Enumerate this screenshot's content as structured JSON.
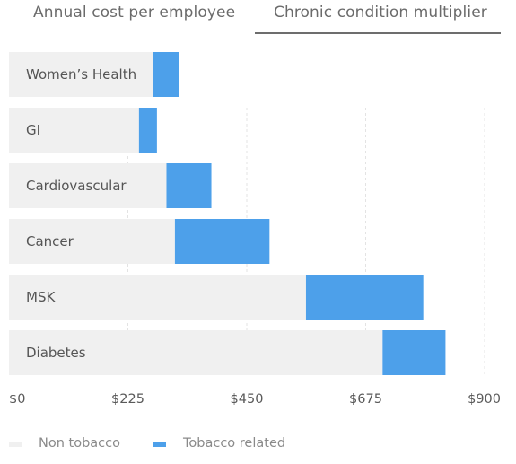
{
  "tabs": [
    {
      "label": "Annual cost per employee",
      "active": false
    },
    {
      "label": "Chronic condition multiplier",
      "active": true
    }
  ],
  "colors": {
    "non_tobacco": "#f0f0f0",
    "tobacco_related": "#4da0ea",
    "grid": "#e3e3e3",
    "text": "#555555"
  },
  "legend": {
    "non_tobacco": "Non tobacco",
    "tobacco_related": "Tobacco related"
  },
  "chart_data": {
    "type": "bar",
    "orientation": "horizontal",
    "stacked": true,
    "categories": [
      "Women’s Health",
      "GI",
      "Cardiovascular",
      "Cancer",
      "MSK",
      "Diabetes"
    ],
    "series": [
      {
        "name": "Non tobacco",
        "values": [
          272,
          246,
          298,
          314,
          562,
          707
        ]
      },
      {
        "name": "Tobacco related",
        "values": [
          50,
          34,
          85,
          179,
          222,
          119
        ]
      }
    ],
    "xlim": [
      0,
      900
    ],
    "xticks": [
      "$0",
      "$225",
      "$450",
      "$675",
      "$900"
    ],
    "xtick_values": [
      0,
      225,
      450,
      675,
      900
    ],
    "grid": "vertical-dashed",
    "legend_position": "bottom-left"
  }
}
